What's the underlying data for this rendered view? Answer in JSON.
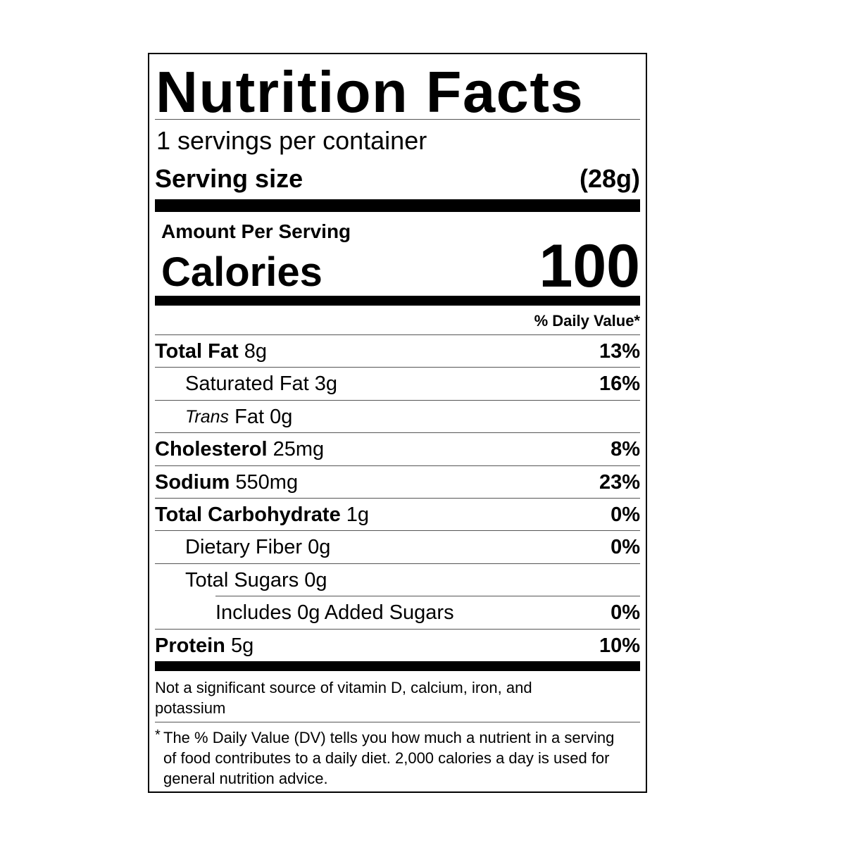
{
  "title": "Nutrition Facts",
  "servings": "1 servings per container",
  "serving_size": {
    "label": "Serving size",
    "value": "(28g)"
  },
  "amount_per_serving": "Amount Per Serving",
  "calories": {
    "label": "Calories",
    "value": "100"
  },
  "daily_value_header": "% Daily Value*",
  "nutrients": [
    {
      "name": "Total Fat",
      "amount": "8g",
      "dv": "13%"
    },
    {
      "name": "Saturated Fat",
      "amount": "3g",
      "dv": "16%"
    },
    {
      "prefix": "Trans",
      "name": "Fat",
      "amount": "0g"
    },
    {
      "name": "Cholesterol",
      "amount": "25mg",
      "dv": "8%"
    },
    {
      "name": "Sodium",
      "amount": "550mg",
      "dv": "23%"
    },
    {
      "name": "Total Carbohydrate",
      "amount": "1g",
      "dv": "0%"
    },
    {
      "name": "Dietary Fiber",
      "amount": "0g",
      "dv": "0%"
    },
    {
      "name": "Total Sugars",
      "amount": "0g"
    },
    {
      "name": "Includes 0g Added Sugars",
      "dv": "0%"
    },
    {
      "name": "Protein",
      "amount": "5g",
      "dv": "10%"
    }
  ],
  "vitamins_note": "Not a significant source of vitamin D, calcium, iron, and potassium",
  "footnote": {
    "mark": "*",
    "text": "The % Daily Value (DV) tells you how much a nutrient in a serving of food contributes to a daily diet. 2,000 calories a day is used for general nutrition advice."
  }
}
